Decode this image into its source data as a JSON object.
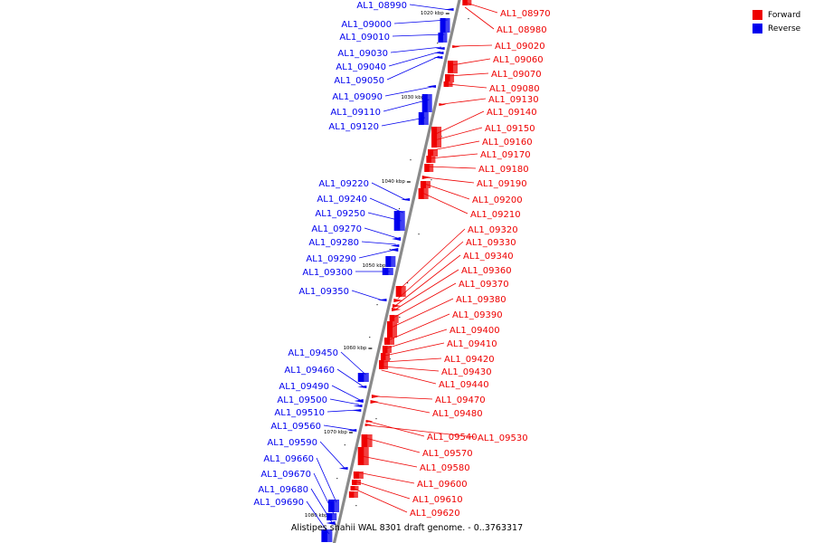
{
  "legend": {
    "forward": {
      "label": "Forward",
      "color": "#ee0000"
    },
    "reverse": {
      "label": "Reverse",
      "color": "#0000ee"
    }
  },
  "caption": "Alistipes shahii WAL 8301 draft genome. - 0..3763317",
  "axis_labels": [
    "1020 kbp",
    "1030 kbp",
    "1040 kbp",
    "1050 kbp",
    "1060 kbp",
    "1070 kbp",
    "1080 kbp"
  ],
  "genes": {
    "reverse": [
      "AL1_08990",
      "AL1_09000",
      "AL1_09010",
      "AL1_09030",
      "AL1_09040",
      "AL1_09050",
      "AL1_09090",
      "AL1_09110",
      "AL1_09120",
      "AL1_09220",
      "AL1_09240",
      "AL1_09250",
      "AL1_09270",
      "AL1_09280",
      "AL1_09290",
      "AL1_09300",
      "AL1_09350",
      "AL1_09450",
      "AL1_09460",
      "AL1_09490",
      "AL1_09500",
      "AL1_09510",
      "AL1_09560",
      "AL1_09590",
      "AL1_09660",
      "AL1_09670",
      "AL1_09680",
      "AL1_09690"
    ],
    "forward": [
      "AL1_08970",
      "AL1_08980",
      "AL1_09020",
      "AL1_09060",
      "AL1_09070",
      "AL1_09080",
      "AL1_09130",
      "AL1_09140",
      "AL1_09150",
      "AL1_09160",
      "AL1_09170",
      "AL1_09180",
      "AL1_09190",
      "AL1_09200",
      "AL1_09210",
      "AL1_09320",
      "AL1_09330",
      "AL1_09340",
      "AL1_09360",
      "AL1_09370",
      "AL1_09380",
      "AL1_09390",
      "AL1_09400",
      "AL1_09410",
      "AL1_09420",
      "AL1_09430",
      "AL1_09440",
      "AL1_09470",
      "AL1_09480",
      "AL1_09540",
      "AL1_09530",
      "AL1_09570",
      "AL1_09580",
      "AL1_09600",
      "AL1_09610",
      "AL1_09620"
    ]
  }
}
